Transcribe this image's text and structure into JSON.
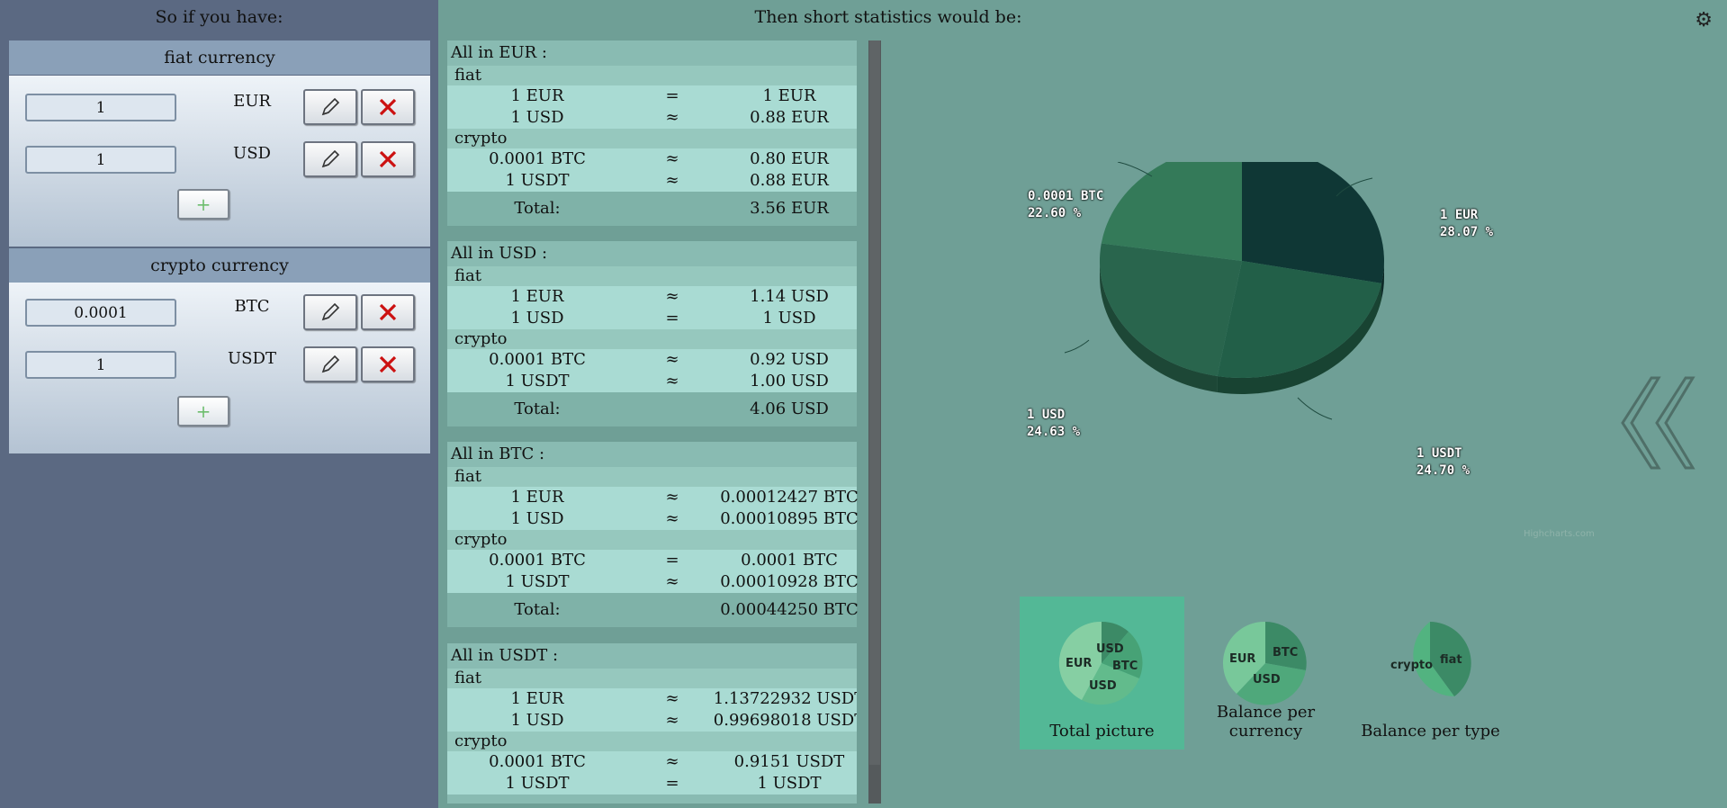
{
  "left": {
    "title": "So if you have:",
    "fiat": {
      "header": "fiat currency",
      "rows": [
        {
          "amount": "1",
          "currency": "EUR"
        },
        {
          "amount": "1",
          "currency": "USD"
        }
      ],
      "add_label": "+"
    },
    "crypto": {
      "header": "crypto currency",
      "rows": [
        {
          "amount": "0.0001",
          "currency": "BTC"
        },
        {
          "amount": "1",
          "currency": "USDT"
        }
      ],
      "add_label": "+"
    }
  },
  "stats": {
    "title": "Then short statistics would be:",
    "blocks": [
      {
        "title": "All in EUR :",
        "fiat_label": "fiat",
        "fiat": [
          {
            "from": "1 EUR",
            "op": "=",
            "to": "1 EUR"
          },
          {
            "from": "1 USD",
            "op": "≈",
            "to": "0.88 EUR"
          }
        ],
        "crypto_label": "crypto",
        "crypto": [
          {
            "from": "0.0001 BTC",
            "op": "≈",
            "to": "0.80 EUR"
          },
          {
            "from": "1 USDT",
            "op": "≈",
            "to": "0.88 EUR"
          }
        ],
        "total_label": "Total:",
        "total_value": "3.56 EUR"
      },
      {
        "title": "All in USD :",
        "fiat_label": "fiat",
        "fiat": [
          {
            "from": "1 EUR",
            "op": "≈",
            "to": "1.14 USD"
          },
          {
            "from": "1 USD",
            "op": "=",
            "to": "1 USD"
          }
        ],
        "crypto_label": "crypto",
        "crypto": [
          {
            "from": "0.0001 BTC",
            "op": "≈",
            "to": "0.92 USD"
          },
          {
            "from": "1 USDT",
            "op": "≈",
            "to": "1.00 USD"
          }
        ],
        "total_label": "Total:",
        "total_value": "4.06 USD"
      },
      {
        "title": "All in BTC :",
        "fiat_label": "fiat",
        "fiat": [
          {
            "from": "1 EUR",
            "op": "≈",
            "to": "0.00012427 BTC"
          },
          {
            "from": "1 USD",
            "op": "≈",
            "to": "0.00010895 BTC"
          }
        ],
        "crypto_label": "crypto",
        "crypto": [
          {
            "from": "0.0001 BTC",
            "op": "=",
            "to": "0.0001 BTC"
          },
          {
            "from": "1 USDT",
            "op": "≈",
            "to": "0.00010928 BTC"
          }
        ],
        "total_label": "Total:",
        "total_value": "0.00044250 BTC"
      },
      {
        "title": "All in USDT :",
        "fiat_label": "fiat",
        "fiat": [
          {
            "from": "1 EUR",
            "op": "≈",
            "to": "1.13722932 USDT"
          },
          {
            "from": "1 USD",
            "op": "≈",
            "to": "0.99698018 USDT"
          }
        ],
        "crypto_label": "crypto",
        "crypto": [
          {
            "from": "0.0001 BTC",
            "op": "≈",
            "to": "0.9151 USDT"
          },
          {
            "from": "1 USDT",
            "op": "=",
            "to": "1 USDT"
          }
        ]
      }
    ]
  },
  "chart_data": {
    "type": "pie",
    "slices": [
      {
        "name": "1 EUR",
        "percent": "28.07 %",
        "value": 28.07,
        "color": "#0f3735"
      },
      {
        "name": "1 USDT",
        "percent": "24.70 %",
        "value": 24.7,
        "color": "#225f48"
      },
      {
        "name": "1 USD",
        "percent": "24.63 %",
        "value": 24.63,
        "color": "#29654d"
      },
      {
        "name": "0.0001 BTC",
        "percent": "22.60 %",
        "value": 22.6,
        "color": "#347a59"
      }
    ],
    "credits": "Highcharts.com"
  },
  "views": [
    {
      "label": "Total picture",
      "active": true,
      "slices": [
        "USD",
        "BTC",
        "USD",
        "EUR"
      ]
    },
    {
      "label": "Balance per currency",
      "active": false,
      "slices": [
        "BTC",
        "USD",
        "EUR"
      ]
    },
    {
      "label": "Balance per type",
      "active": false,
      "slices": [
        "fiat",
        "crypto"
      ]
    }
  ],
  "colors": {
    "left_bg": "#5b6982",
    "right_bg": "#6f9f96",
    "delete": "#cc1111",
    "plus": "#6dbd6d",
    "active_view": "#53b896"
  },
  "icons": {
    "settings": "gear-icon",
    "edit": "pencil-icon",
    "delete": "close-icon",
    "collapse": "double-chevron-left-icon"
  }
}
